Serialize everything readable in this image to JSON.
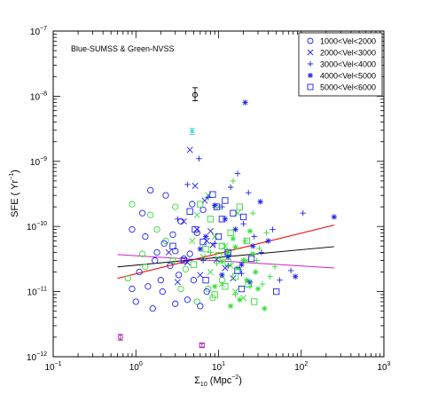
{
  "chart_data": {
    "type": "scatter",
    "title": "",
    "annotation": "Blue-SUMSS & Green-NVSS",
    "xlabel": "Σ",
    "xlabel_sub": "10",
    "xlabel_unit": " (Mpc",
    "xlabel_sup": "−2",
    "xlabel_close": ")",
    "ylabel": "SFE ( Yr",
    "ylabel_sup": "−1",
    "ylabel_close": ")",
    "xscale": "log",
    "yscale": "log",
    "xlim": [
      0.1,
      1000
    ],
    "ylim": [
      1e-12,
      1e-07
    ],
    "x_ticks": [
      {
        "value": 0.1,
        "base": "10",
        "exp": "−1"
      },
      {
        "value": 1,
        "base": "10",
        "exp": "0"
      },
      {
        "value": 10,
        "base": "10",
        "exp": "1"
      },
      {
        "value": 100,
        "base": "10",
        "exp": "2"
      },
      {
        "value": 1000,
        "base": "10",
        "exp": "3"
      }
    ],
    "y_ticks": [
      {
        "value": 1e-12,
        "base": "10",
        "exp": "−12"
      },
      {
        "value": 1e-11,
        "base": "10",
        "exp": "−11"
      },
      {
        "value": 1e-10,
        "base": "10",
        "exp": "−10"
      },
      {
        "value": 1e-09,
        "base": "10",
        "exp": "−9"
      },
      {
        "value": 1e-08,
        "base": "10",
        "exp": "−8"
      },
      {
        "value": 1e-07,
        "base": "10",
        "exp": "−7"
      }
    ],
    "legend_position": "top-right",
    "colors": {
      "blue": "#2222ee",
      "green": "#33dd33",
      "cyan": "#33dddd",
      "magenta": "#aa22aa",
      "red": "#ee0000",
      "black": "#000000",
      "purple": "#cc22cc"
    },
    "series": [
      {
        "name": "1000<Vel<2000",
        "marker": "circle",
        "blue": [
          [
            1.5,
            3.6e-10
          ],
          [
            2.3,
            3e-10
          ],
          [
            1.2,
            1.6e-10
          ],
          [
            3.5,
            1.2e-10
          ],
          [
            0.9,
            9e-11
          ],
          [
            1.3,
            7e-11
          ],
          [
            2.2,
            5.5e-11
          ],
          [
            3.0,
            4.2e-11
          ],
          [
            4.5,
            3.8e-11
          ],
          [
            1.7,
            3e-11
          ],
          [
            2.6,
            2.5e-11
          ],
          [
            1.1,
            2e-11
          ],
          [
            3.3,
            1.8e-11
          ],
          [
            5.0,
            1.5e-11
          ],
          [
            1.4,
            1.2e-11
          ],
          [
            2.1,
            1e-11
          ],
          [
            0.9,
            1.1e-11
          ],
          [
            1.0,
            7e-12
          ],
          [
            3.0,
            6.5e-12
          ],
          [
            4.2,
            7.5e-12
          ],
          [
            6.0,
            6e-12
          ],
          [
            1.6,
            5.5e-12
          ],
          [
            7.2,
            1e-11
          ],
          [
            4.8,
            2.2e-10
          ],
          [
            6.5,
            1.8e-10
          ],
          [
            5.5,
            8e-11
          ],
          [
            2.8,
            7.5e-11
          ],
          [
            1.8,
            4e-11
          ],
          [
            3.8,
            3.2e-11
          ],
          [
            2.0,
            1.5e-11
          ]
        ],
        "green": [
          [
            0.9,
            2.2e-10
          ],
          [
            1.5,
            1.5e-10
          ],
          [
            1.8,
            9e-11
          ],
          [
            2.3,
            6e-11
          ],
          [
            1.2,
            3.8e-11
          ],
          [
            2.8,
            3e-11
          ],
          [
            4.0,
            2.2e-11
          ],
          [
            0.8,
            1.6e-11
          ],
          [
            3.5,
            1.1e-11
          ],
          [
            5.5,
            7e-12
          ],
          [
            8.5,
            8e-12
          ],
          [
            11,
            1.5e-11
          ],
          [
            7.5,
            1.1e-11
          ],
          [
            3.0,
            2e-10
          ],
          [
            1.3,
            2.4e-11
          ]
        ]
      },
      {
        "name": "2000<Vel<3000",
        "marker": "x",
        "blue": [
          [
            4.5,
            1.5e-09
          ],
          [
            6.8,
            2.5e-10
          ],
          [
            3.8,
            1.2e-10
          ],
          [
            5.5,
            9e-11
          ],
          [
            7.2,
            6e-11
          ],
          [
            8.5,
            5.2e-11
          ],
          [
            2.5,
            4e-11
          ],
          [
            9.5,
            3.1e-11
          ],
          [
            4.2,
            2.8e-11
          ],
          [
            12,
            2.3e-11
          ],
          [
            6.0,
            1.8e-11
          ],
          [
            15,
            1.6e-11
          ],
          [
            3.2,
            1.4e-11
          ],
          [
            5.2,
            4.2e-10
          ],
          [
            8.0,
            8.5e-11
          ]
        ],
        "green": [
          [
            7.5,
            3e-10
          ],
          [
            10,
            2e-10
          ],
          [
            5.5,
            1.5e-10
          ],
          [
            9,
            7e-11
          ],
          [
            12,
            5e-11
          ],
          [
            6.5,
            3.4e-11
          ],
          [
            14,
            2.5e-11
          ],
          [
            8,
            2e-11
          ],
          [
            11,
            1.3e-11
          ],
          [
            16,
            1e-11
          ],
          [
            20,
            8e-12
          ],
          [
            4.8,
            6e-11
          ],
          [
            17,
            1.6e-10
          ],
          [
            13,
            4e-11
          ],
          [
            22,
            3e-11
          ]
        ]
      },
      {
        "name": "3000<Vel<4000",
        "marker": "plus",
        "blue": [
          [
            5.8,
            1.1e-09
          ],
          [
            17,
            6.5e-10
          ],
          [
            4.2,
            4.4e-10
          ],
          [
            14,
            4e-10
          ],
          [
            23,
            3.3e-10
          ],
          [
            7.5,
            2.8e-10
          ],
          [
            11,
            2e-10
          ],
          [
            3.2,
            1.3e-10
          ],
          [
            105,
            1.6e-10
          ],
          [
            20,
            1.1e-10
          ],
          [
            45,
            9e-11
          ],
          [
            27,
            7e-11
          ],
          [
            9,
            5.5e-11
          ],
          [
            33,
            4e-11
          ],
          [
            6.5,
            3e-11
          ],
          [
            13,
            2.5e-11
          ],
          [
            19,
            1.9e-11
          ],
          [
            75,
            2.1e-11
          ],
          [
            55,
            1.5e-11
          ]
        ],
        "green": [
          [
            15,
            5e-10
          ],
          [
            26,
            1.6e-10
          ],
          [
            38,
            8e-11
          ],
          [
            21,
            6e-11
          ],
          [
            31,
            4.6e-11
          ],
          [
            12,
            3.8e-11
          ],
          [
            9.5,
            2.7e-11
          ],
          [
            18,
            2.2e-11
          ],
          [
            42,
            1.7e-11
          ],
          [
            24,
            1.2e-11
          ],
          [
            16,
            9e-12
          ],
          [
            29,
            3e-11
          ],
          [
            48,
            2.4e-11
          ],
          [
            34,
            1.3e-11
          ],
          [
            8,
            4e-11
          ]
        ]
      },
      {
        "name": "4000<Vel<5000",
        "marker": "asterisk",
        "blue": [
          [
            21,
            8e-09
          ],
          [
            250,
            1.4e-10
          ],
          [
            85,
            1.7e-11
          ],
          [
            9,
            2.1e-10
          ],
          [
            12,
            1.3e-10
          ],
          [
            16,
            9e-11
          ],
          [
            7,
            7e-11
          ],
          [
            26,
            5e-11
          ],
          [
            13,
            3.4e-11
          ],
          [
            19,
            2.6e-11
          ],
          [
            11,
            1.8e-11
          ],
          [
            24,
            1.4e-11
          ],
          [
            32,
            2.4e-10
          ],
          [
            40,
            6e-11
          ],
          [
            6,
            4.5e-11
          ]
        ],
        "green": [
          [
            36,
            5.5e-12
          ],
          [
            18,
            7.5e-12
          ],
          [
            14,
            6e-12
          ],
          [
            20,
            3e-11
          ],
          [
            28,
            2e-11
          ],
          [
            11,
            2.9e-11
          ],
          [
            16,
            4.8e-11
          ],
          [
            24,
            8.5e-11
          ],
          [
            9,
            1.2e-11
          ],
          [
            30,
            1.1e-11
          ],
          [
            13,
            4e-11
          ],
          [
            22,
            1.5e-11
          ],
          [
            15,
            6.5e-11
          ],
          [
            26,
            3.8e-11
          ],
          [
            17,
            2.3e-11
          ]
        ]
      },
      {
        "name": "5000<Vel<6000",
        "marker": "square",
        "blue": [
          [
            8.5,
            3.1e-10
          ],
          [
            12,
            2.5e-10
          ],
          [
            15,
            1.6e-10
          ],
          [
            5.2,
            9e-11
          ],
          [
            10,
            7e-11
          ],
          [
            6.5,
            5.8e-11
          ],
          [
            2.8,
            5e-11
          ],
          [
            13,
            4e-11
          ],
          [
            3.8,
            3e-11
          ],
          [
            17,
            2.1e-11
          ],
          [
            7,
            1.5e-11
          ],
          [
            19,
            1.1e-11
          ],
          [
            50,
            1e-11
          ],
          [
            25,
            3.2e-11
          ],
          [
            9.5,
            2e-10
          ],
          [
            4.5,
            1.7e-10
          ],
          [
            11,
            1.3e-10
          ],
          [
            20,
            1.4e-10
          ]
        ],
        "green": [
          [
            6,
            2.2e-10
          ],
          [
            18,
            2e-10
          ],
          [
            8,
            1.3e-10
          ],
          [
            14,
            8e-11
          ],
          [
            22,
            6e-11
          ],
          [
            10,
            3.6e-11
          ],
          [
            5,
            2.6e-11
          ],
          [
            12,
            1.2e-11
          ],
          [
            9,
            9e-12
          ],
          [
            16,
            1.7e-11
          ],
          [
            27,
            7e-12
          ],
          [
            11,
            5e-11
          ],
          [
            7,
            4.5e-11
          ],
          [
            23,
            1.3e-11
          ],
          [
            13,
            2.8e-11
          ]
        ]
      }
    ],
    "error_points": [
      {
        "color": "black",
        "marker": "circle",
        "x": 5.2,
        "y": 1.05e-08,
        "ylow": 8.5e-09,
        "yhigh": 1.35e-08
      },
      {
        "color": "cyan",
        "marker": "asterisk",
        "x": 4.8,
        "y": 2.9e-09,
        "ylow": 2.6e-09,
        "yhigh": 3.2e-09
      },
      {
        "color": "magenta",
        "marker": "circle",
        "x": 0.65,
        "y": 2e-12,
        "ylow": 1.8e-12,
        "yhigh": 2.2e-12
      },
      {
        "color": "magenta",
        "marker": "square",
        "x": 6.3,
        "y": 1.5e-12,
        "ylow": 1.4e-12,
        "yhigh": 1.6e-12
      }
    ],
    "fit_lines": [
      {
        "color": "red",
        "x": [
          0.6,
          250
        ],
        "y": [
          1.6e-11,
          1.05e-10
        ]
      },
      {
        "color": "black",
        "x": [
          0.6,
          250
        ],
        "y": [
          2.4e-11,
          4.9e-11
        ]
      },
      {
        "color": "purple",
        "x": [
          0.6,
          250
        ],
        "y": [
          3.7e-11,
          2.3e-11
        ]
      }
    ]
  }
}
